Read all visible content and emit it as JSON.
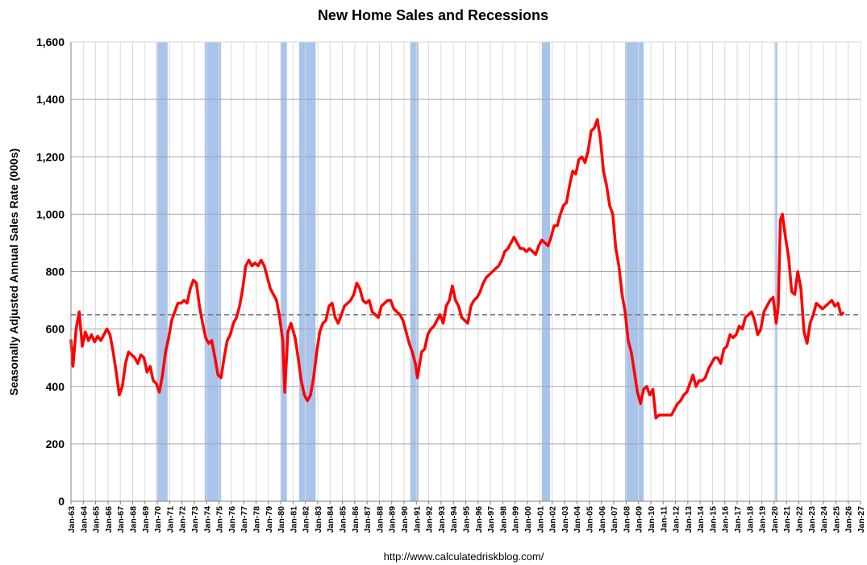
{
  "chart_data": {
    "type": "line",
    "title": "New Home Sales and Recessions",
    "ylabel": "Seasonally Adjusted Annual Sales Rate (000s)",
    "xlabel": "",
    "source": "http://www.calculatedriskblog.com/",
    "ylim": [
      0,
      1600
    ],
    "yticks": [
      "0",
      "200",
      "400",
      "600",
      "800",
      "1,000",
      "1,200",
      "1,400",
      "1,600"
    ],
    "xlim": [
      "1963-01",
      "2027-01"
    ],
    "xticks": [
      "Jan-63",
      "Jan-64",
      "Jan-65",
      "Jan-66",
      "Jan-67",
      "Jan-68",
      "Jan-69",
      "Jan-70",
      "Jan-71",
      "Jan-72",
      "Jan-73",
      "Jan-74",
      "Jan-75",
      "Jan-76",
      "Jan-77",
      "Jan-78",
      "Jan-79",
      "Jan-80",
      "Jan-81",
      "Jan-82",
      "Jan-83",
      "Jan-84",
      "Jan-85",
      "Jan-86",
      "Jan-87",
      "Jan-88",
      "Jan-89",
      "Jan-90",
      "Jan-91",
      "Jan-92",
      "Jan-93",
      "Jan-94",
      "Jan-95",
      "Jan-96",
      "Jan-97",
      "Jan-98",
      "Jan-99",
      "Jan-00",
      "Jan-01",
      "Jan-02",
      "Jan-03",
      "Jan-04",
      "Jan-05",
      "Jan-06",
      "Jan-07",
      "Jan-08",
      "Jan-09",
      "Jan-10",
      "Jan-11",
      "Jan-12",
      "Jan-13",
      "Jan-14",
      "Jan-15",
      "Jan-16",
      "Jan-17",
      "Jan-18",
      "Jan-19",
      "Jan-20",
      "Jan-21",
      "Jan-22",
      "Jan-23",
      "Jan-24",
      "Jan-25",
      "Jan-26",
      "Jan-27"
    ],
    "grid": true,
    "reference_line": {
      "value": 650,
      "style": "dashed",
      "color": "#808080"
    },
    "recessions": [
      {
        "start": "1969-12",
        "end": "1970-11"
      },
      {
        "start": "1973-11",
        "end": "1975-03"
      },
      {
        "start": "1980-01",
        "end": "1980-07"
      },
      {
        "start": "1981-07",
        "end": "1982-11"
      },
      {
        "start": "1990-07",
        "end": "1991-03"
      },
      {
        "start": "2001-03",
        "end": "2001-11"
      },
      {
        "start": "2007-12",
        "end": "2009-06"
      },
      {
        "start": "2020-02",
        "end": "2020-04"
      }
    ],
    "series": [
      {
        "color": "#ff0000",
        "points": [
          [
            "1963-01",
            560
          ],
          [
            "1963-03",
            470
          ],
          [
            "1963-06",
            600
          ],
          [
            "1963-09",
            660
          ],
          [
            "1963-12",
            540
          ],
          [
            "1964-03",
            590
          ],
          [
            "1964-06",
            560
          ],
          [
            "1964-09",
            580
          ],
          [
            "1964-12",
            555
          ],
          [
            "1965-03",
            575
          ],
          [
            "1965-06",
            560
          ],
          [
            "1965-09",
            580
          ],
          [
            "1965-12",
            600
          ],
          [
            "1966-03",
            580
          ],
          [
            "1966-06",
            520
          ],
          [
            "1966-09",
            450
          ],
          [
            "1966-12",
            370
          ],
          [
            "1967-03",
            400
          ],
          [
            "1967-06",
            480
          ],
          [
            "1967-09",
            520
          ],
          [
            "1967-12",
            510
          ],
          [
            "1968-03",
            500
          ],
          [
            "1968-06",
            480
          ],
          [
            "1968-09",
            510
          ],
          [
            "1968-12",
            500
          ],
          [
            "1969-03",
            450
          ],
          [
            "1969-06",
            470
          ],
          [
            "1969-09",
            420
          ],
          [
            "1969-12",
            410
          ],
          [
            "1970-03",
            380
          ],
          [
            "1970-06",
            440
          ],
          [
            "1970-09",
            520
          ],
          [
            "1970-12",
            570
          ],
          [
            "1971-03",
            630
          ],
          [
            "1971-06",
            660
          ],
          [
            "1971-09",
            690
          ],
          [
            "1971-12",
            690
          ],
          [
            "1972-03",
            700
          ],
          [
            "1972-06",
            690
          ],
          [
            "1972-09",
            740
          ],
          [
            "1972-12",
            770
          ],
          [
            "1973-03",
            760
          ],
          [
            "1973-06",
            680
          ],
          [
            "1973-09",
            620
          ],
          [
            "1973-12",
            570
          ],
          [
            "1974-03",
            550
          ],
          [
            "1974-06",
            560
          ],
          [
            "1974-09",
            500
          ],
          [
            "1974-12",
            440
          ],
          [
            "1975-03",
            430
          ],
          [
            "1975-06",
            500
          ],
          [
            "1975-09",
            560
          ],
          [
            "1975-12",
            580
          ],
          [
            "1976-03",
            620
          ],
          [
            "1976-06",
            640
          ],
          [
            "1976-09",
            680
          ],
          [
            "1976-12",
            740
          ],
          [
            "1977-03",
            820
          ],
          [
            "1977-06",
            840
          ],
          [
            "1977-09",
            820
          ],
          [
            "1977-12",
            830
          ],
          [
            "1978-03",
            820
          ],
          [
            "1978-06",
            840
          ],
          [
            "1978-09",
            820
          ],
          [
            "1978-12",
            780
          ],
          [
            "1979-03",
            740
          ],
          [
            "1979-06",
            720
          ],
          [
            "1979-09",
            700
          ],
          [
            "1979-12",
            640
          ],
          [
            "1980-03",
            560
          ],
          [
            "1980-05",
            380
          ],
          [
            "1980-08",
            590
          ],
          [
            "1980-11",
            620
          ],
          [
            "1981-03",
            570
          ],
          [
            "1981-06",
            500
          ],
          [
            "1981-09",
            420
          ],
          [
            "1981-12",
            370
          ],
          [
            "1982-03",
            350
          ],
          [
            "1982-06",
            370
          ],
          [
            "1982-09",
            430
          ],
          [
            "1982-12",
            520
          ],
          [
            "1983-03",
            590
          ],
          [
            "1983-06",
            620
          ],
          [
            "1983-09",
            630
          ],
          [
            "1983-12",
            680
          ],
          [
            "1984-03",
            690
          ],
          [
            "1984-06",
            640
          ],
          [
            "1984-09",
            620
          ],
          [
            "1984-12",
            650
          ],
          [
            "1985-03",
            680
          ],
          [
            "1985-06",
            690
          ],
          [
            "1985-09",
            700
          ],
          [
            "1985-12",
            720
          ],
          [
            "1986-03",
            760
          ],
          [
            "1986-06",
            740
          ],
          [
            "1986-09",
            700
          ],
          [
            "1986-12",
            690
          ],
          [
            "1987-03",
            700
          ],
          [
            "1987-06",
            660
          ],
          [
            "1987-09",
            650
          ],
          [
            "1987-12",
            640
          ],
          [
            "1988-03",
            680
          ],
          [
            "1988-06",
            690
          ],
          [
            "1988-09",
            700
          ],
          [
            "1988-12",
            700
          ],
          [
            "1989-03",
            670
          ],
          [
            "1989-06",
            660
          ],
          [
            "1989-09",
            650
          ],
          [
            "1989-12",
            630
          ],
          [
            "1990-03",
            590
          ],
          [
            "1990-06",
            550
          ],
          [
            "1990-09",
            520
          ],
          [
            "1990-12",
            480
          ],
          [
            "1991-02",
            430
          ],
          [
            "1991-06",
            520
          ],
          [
            "1991-09",
            530
          ],
          [
            "1991-12",
            580
          ],
          [
            "1992-03",
            600
          ],
          [
            "1992-06",
            610
          ],
          [
            "1992-09",
            630
          ],
          [
            "1992-12",
            650
          ],
          [
            "1993-03",
            620
          ],
          [
            "1993-06",
            680
          ],
          [
            "1993-09",
            700
          ],
          [
            "1993-12",
            750
          ],
          [
            "1994-03",
            700
          ],
          [
            "1994-06",
            680
          ],
          [
            "1994-09",
            640
          ],
          [
            "1994-12",
            630
          ],
          [
            "1995-03",
            620
          ],
          [
            "1995-06",
            680
          ],
          [
            "1995-09",
            700
          ],
          [
            "1995-12",
            710
          ],
          [
            "1996-03",
            730
          ],
          [
            "1996-06",
            760
          ],
          [
            "1996-09",
            780
          ],
          [
            "1996-12",
            790
          ],
          [
            "1997-03",
            800
          ],
          [
            "1997-06",
            810
          ],
          [
            "1997-09",
            820
          ],
          [
            "1997-12",
            840
          ],
          [
            "1998-03",
            870
          ],
          [
            "1998-06",
            880
          ],
          [
            "1998-09",
            900
          ],
          [
            "1998-12",
            920
          ],
          [
            "1999-03",
            900
          ],
          [
            "1999-06",
            880
          ],
          [
            "1999-09",
            880
          ],
          [
            "1999-12",
            870
          ],
          [
            "2000-03",
            880
          ],
          [
            "2000-06",
            870
          ],
          [
            "2000-09",
            860
          ],
          [
            "2000-12",
            890
          ],
          [
            "2001-03",
            910
          ],
          [
            "2001-06",
            900
          ],
          [
            "2001-09",
            890
          ],
          [
            "2001-12",
            920
          ],
          [
            "2002-03",
            960
          ],
          [
            "2002-06",
            960
          ],
          [
            "2002-09",
            1000
          ],
          [
            "2002-12",
            1030
          ],
          [
            "2003-03",
            1040
          ],
          [
            "2003-06",
            1100
          ],
          [
            "2003-09",
            1150
          ],
          [
            "2003-12",
            1140
          ],
          [
            "2004-03",
            1190
          ],
          [
            "2004-06",
            1200
          ],
          [
            "2004-09",
            1180
          ],
          [
            "2004-12",
            1220
          ],
          [
            "2005-03",
            1290
          ],
          [
            "2005-06",
            1300
          ],
          [
            "2005-09",
            1330
          ],
          [
            "2005-12",
            1260
          ],
          [
            "2006-03",
            1150
          ],
          [
            "2006-06",
            1100
          ],
          [
            "2006-09",
            1030
          ],
          [
            "2006-12",
            1000
          ],
          [
            "2007-03",
            880
          ],
          [
            "2007-06",
            820
          ],
          [
            "2007-09",
            720
          ],
          [
            "2007-12",
            660
          ],
          [
            "2008-03",
            560
          ],
          [
            "2008-06",
            520
          ],
          [
            "2008-09",
            450
          ],
          [
            "2008-12",
            380
          ],
          [
            "2009-03",
            340
          ],
          [
            "2009-06",
            390
          ],
          [
            "2009-09",
            400
          ],
          [
            "2009-12",
            370
          ],
          [
            "2010-03",
            390
          ],
          [
            "2010-06",
            290
          ],
          [
            "2010-09",
            300
          ],
          [
            "2010-12",
            300
          ],
          [
            "2011-03",
            300
          ],
          [
            "2011-06",
            300
          ],
          [
            "2011-09",
            300
          ],
          [
            "2011-12",
            320
          ],
          [
            "2012-03",
            340
          ],
          [
            "2012-06",
            350
          ],
          [
            "2012-09",
            370
          ],
          [
            "2012-12",
            380
          ],
          [
            "2013-03",
            410
          ],
          [
            "2013-06",
            440
          ],
          [
            "2013-09",
            400
          ],
          [
            "2013-12",
            420
          ],
          [
            "2014-03",
            420
          ],
          [
            "2014-06",
            430
          ],
          [
            "2014-09",
            460
          ],
          [
            "2014-12",
            480
          ],
          [
            "2015-03",
            500
          ],
          [
            "2015-06",
            500
          ],
          [
            "2015-09",
            480
          ],
          [
            "2015-12",
            530
          ],
          [
            "2016-03",
            540
          ],
          [
            "2016-06",
            580
          ],
          [
            "2016-09",
            570
          ],
          [
            "2016-12",
            580
          ],
          [
            "2017-03",
            610
          ],
          [
            "2017-06",
            600
          ],
          [
            "2017-09",
            640
          ],
          [
            "2017-12",
            650
          ],
          [
            "2018-03",
            660
          ],
          [
            "2018-06",
            630
          ],
          [
            "2018-09",
            580
          ],
          [
            "2018-12",
            600
          ],
          [
            "2019-03",
            660
          ],
          [
            "2019-06",
            680
          ],
          [
            "2019-09",
            700
          ],
          [
            "2019-12",
            710
          ],
          [
            "2020-03",
            620
          ],
          [
            "2020-05",
            680
          ],
          [
            "2020-07",
            980
          ],
          [
            "2020-09",
            1000
          ],
          [
            "2020-12",
            920
          ],
          [
            "2021-03",
            850
          ],
          [
            "2021-06",
            730
          ],
          [
            "2021-09",
            720
          ],
          [
            "2021-12",
            800
          ],
          [
            "2022-03",
            740
          ],
          [
            "2022-06",
            590
          ],
          [
            "2022-09",
            550
          ],
          [
            "2022-12",
            620
          ],
          [
            "2023-03",
            650
          ],
          [
            "2023-06",
            690
          ],
          [
            "2023-09",
            680
          ],
          [
            "2023-12",
            670
          ],
          [
            "2024-03",
            680
          ],
          [
            "2024-06",
            690
          ],
          [
            "2024-09",
            700
          ],
          [
            "2024-12",
            680
          ],
          [
            "2025-03",
            690
          ],
          [
            "2025-06",
            650
          ],
          [
            "2025-08",
            655
          ]
        ]
      }
    ]
  }
}
